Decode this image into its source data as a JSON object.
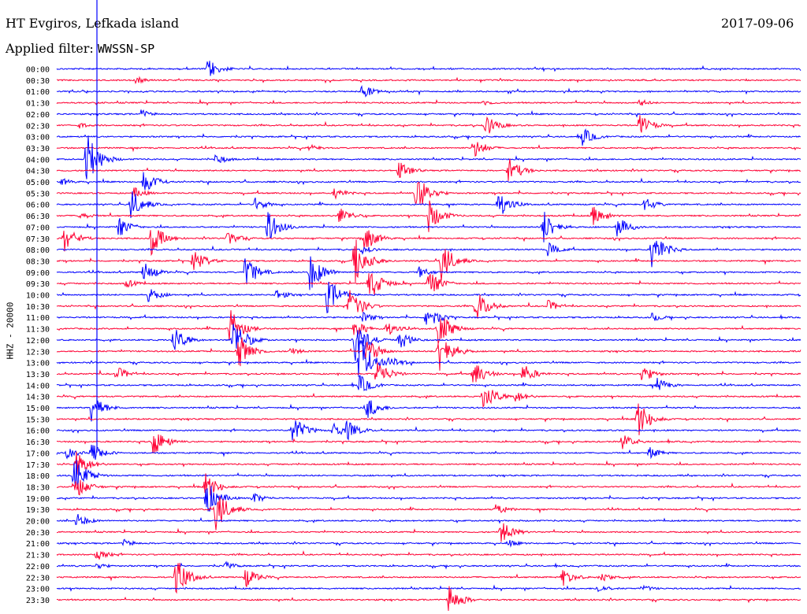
{
  "header": {
    "station": "HT Evgiros, Lefkada island",
    "date": "2017-09-06",
    "filter_label": "Applied filter:",
    "filter_value": "WWSSN-SP"
  },
  "ylabel": "HHZ - 20000",
  "colors": {
    "blue": "#0000ff",
    "red": "#ff0033",
    "marker": "#0000ff"
  },
  "chart_data": {
    "type": "line",
    "title": "HT Evgiros, Lefkada island",
    "row_labels": [
      "00:00",
      "00:30",
      "01:00",
      "01:30",
      "02:00",
      "02:30",
      "03:00",
      "03:30",
      "04:00",
      "04:30",
      "05:00",
      "05:30",
      "06:00",
      "06:30",
      "07:00",
      "07:30",
      "08:00",
      "08:30",
      "09:00",
      "09:30",
      "10:00",
      "10:30",
      "11:00",
      "11:30",
      "12:00",
      "12:30",
      "13:00",
      "13:30",
      "14:00",
      "14:30",
      "15:00",
      "15:30",
      "16:00",
      "16:30",
      "17:00",
      "17:30",
      "18:00",
      "18:30",
      "19:00",
      "19:30",
      "20:00",
      "20:30",
      "21:00",
      "21:30",
      "22:00",
      "22:30",
      "23:00",
      "23:30"
    ],
    "row_colors": [
      "blue",
      "red"
    ],
    "marker_minute": 11,
    "events": [
      {
        "row": 0,
        "min": 6.1,
        "amp": 14
      },
      {
        "row": 1,
        "min": 3.2,
        "amp": 5
      },
      {
        "row": 2,
        "min": 12.3,
        "amp": 10
      },
      {
        "row": 3,
        "min": 17.2,
        "amp": 4
      },
      {
        "row": 3,
        "min": 23.5,
        "amp": 5
      },
      {
        "row": 4,
        "min": 3.4,
        "amp": 6
      },
      {
        "row": 5,
        "min": 0.9,
        "amp": 4
      },
      {
        "row": 5,
        "min": 17.3,
        "amp": 14
      },
      {
        "row": 5,
        "min": 23.5,
        "amp": 15
      },
      {
        "row": 6,
        "min": 21.2,
        "amp": 12
      },
      {
        "row": 7,
        "min": 16.8,
        "amp": 14
      },
      {
        "row": 7,
        "min": 10.2,
        "amp": 5
      },
      {
        "row": 8,
        "min": 1.2,
        "amp": 36
      },
      {
        "row": 8,
        "min": 6.4,
        "amp": 8
      },
      {
        "row": 9,
        "min": 13.8,
        "amp": 12
      },
      {
        "row": 9,
        "min": 18.2,
        "amp": 18
      },
      {
        "row": 10,
        "min": 3.5,
        "amp": 16
      },
      {
        "row": 10,
        "min": 0.2,
        "amp": 5
      },
      {
        "row": 11,
        "min": 3.1,
        "amp": 8
      },
      {
        "row": 11,
        "min": 14.5,
        "amp": 28
      },
      {
        "row": 11,
        "min": 11.2,
        "amp": 8
      },
      {
        "row": 12,
        "min": 3.0,
        "amp": 20
      },
      {
        "row": 12,
        "min": 8.0,
        "amp": 9
      },
      {
        "row": 12,
        "min": 17.8,
        "amp": 18
      },
      {
        "row": 12,
        "min": 23.7,
        "amp": 10
      },
      {
        "row": 13,
        "min": 0.9,
        "amp": 6
      },
      {
        "row": 13,
        "min": 11.4,
        "amp": 12
      },
      {
        "row": 13,
        "min": 15.0,
        "amp": 22
      },
      {
        "row": 13,
        "min": 21.6,
        "amp": 14
      },
      {
        "row": 14,
        "min": 2.5,
        "amp": 14
      },
      {
        "row": 14,
        "min": 8.5,
        "amp": 22
      },
      {
        "row": 14,
        "min": 19.6,
        "amp": 24
      },
      {
        "row": 14,
        "min": 22.6,
        "amp": 14
      },
      {
        "row": 15,
        "min": 0.3,
        "amp": 18
      },
      {
        "row": 15,
        "min": 3.8,
        "amp": 22
      },
      {
        "row": 15,
        "min": 6.9,
        "amp": 10
      },
      {
        "row": 15,
        "min": 12.4,
        "amp": 18
      },
      {
        "row": 16,
        "min": 24.0,
        "amp": 26
      },
      {
        "row": 16,
        "min": 12.3,
        "amp": 6
      },
      {
        "row": 16,
        "min": 19.8,
        "amp": 10
      },
      {
        "row": 17,
        "min": 5.5,
        "amp": 16
      },
      {
        "row": 17,
        "min": 12.0,
        "amp": 34
      },
      {
        "row": 17,
        "min": 15.5,
        "amp": 26
      },
      {
        "row": 18,
        "min": 3.5,
        "amp": 14
      },
      {
        "row": 18,
        "min": 7.6,
        "amp": 22
      },
      {
        "row": 18,
        "min": 10.2,
        "amp": 26
      },
      {
        "row": 18,
        "min": 14.6,
        "amp": 8
      },
      {
        "row": 19,
        "min": 2.8,
        "amp": 6
      },
      {
        "row": 19,
        "min": 12.6,
        "amp": 26
      },
      {
        "row": 19,
        "min": 15.0,
        "amp": 18
      },
      {
        "row": 20,
        "min": 3.7,
        "amp": 10
      },
      {
        "row": 20,
        "min": 8.8,
        "amp": 8
      },
      {
        "row": 20,
        "min": 10.9,
        "amp": 24
      },
      {
        "row": 21,
        "min": 11.8,
        "amp": 24
      },
      {
        "row": 21,
        "min": 16.9,
        "amp": 22
      },
      {
        "row": 21,
        "min": 19.8,
        "amp": 8
      },
      {
        "row": 22,
        "min": 14.9,
        "amp": 18
      },
      {
        "row": 22,
        "min": 12.3,
        "amp": 8
      },
      {
        "row": 22,
        "min": 24.0,
        "amp": 6
      },
      {
        "row": 23,
        "min": 7.0,
        "amp": 26
      },
      {
        "row": 23,
        "min": 12.0,
        "amp": 12
      },
      {
        "row": 23,
        "min": 13.3,
        "amp": 10
      },
      {
        "row": 23,
        "min": 15.4,
        "amp": 24
      },
      {
        "row": 24,
        "min": 4.7,
        "amp": 18
      },
      {
        "row": 24,
        "min": 7.1,
        "amp": 30
      },
      {
        "row": 24,
        "min": 12.0,
        "amp": 30
      },
      {
        "row": 24,
        "min": 13.8,
        "amp": 14
      },
      {
        "row": 25,
        "min": 7.3,
        "amp": 26
      },
      {
        "row": 25,
        "min": 12.5,
        "amp": 18
      },
      {
        "row": 25,
        "min": 15.4,
        "amp": 34
      },
      {
        "row": 25,
        "min": 9.4,
        "amp": 6
      },
      {
        "row": 26,
        "min": 12.2,
        "amp": 36
      },
      {
        "row": 26,
        "min": 13.4,
        "amp": 10
      },
      {
        "row": 27,
        "min": 2.4,
        "amp": 10
      },
      {
        "row": 27,
        "min": 16.8,
        "amp": 18
      },
      {
        "row": 27,
        "min": 18.8,
        "amp": 14
      },
      {
        "row": 27,
        "min": 23.6,
        "amp": 12
      },
      {
        "row": 27,
        "min": 12.9,
        "amp": 20
      },
      {
        "row": 28,
        "min": 12.2,
        "amp": 14
      },
      {
        "row": 28,
        "min": 24.2,
        "amp": 10
      },
      {
        "row": 29,
        "min": 17.2,
        "amp": 20
      },
      {
        "row": 29,
        "min": 18.5,
        "amp": 8
      },
      {
        "row": 30,
        "min": 1.4,
        "amp": 18
      },
      {
        "row": 30,
        "min": 12.5,
        "amp": 16
      },
      {
        "row": 31,
        "min": 23.4,
        "amp": 26
      },
      {
        "row": 32,
        "min": 9.5,
        "amp": 20
      },
      {
        "row": 32,
        "min": 11.1,
        "amp": 12
      },
      {
        "row": 32,
        "min": 11.7,
        "amp": 14
      },
      {
        "row": 33,
        "min": 3.9,
        "amp": 20
      },
      {
        "row": 33,
        "min": 22.8,
        "amp": 10
      },
      {
        "row": 34,
        "min": 0.4,
        "amp": 8
      },
      {
        "row": 34,
        "min": 1.4,
        "amp": 14
      },
      {
        "row": 34,
        "min": 23.9,
        "amp": 8
      },
      {
        "row": 35,
        "min": 0.8,
        "amp": 18
      },
      {
        "row": 36,
        "min": 0.7,
        "amp": 26
      },
      {
        "row": 37,
        "min": 0.7,
        "amp": 20
      },
      {
        "row": 37,
        "min": 6.0,
        "amp": 18
      },
      {
        "row": 38,
        "min": 6.0,
        "amp": 26
      },
      {
        "row": 38,
        "min": 7.9,
        "amp": 8
      },
      {
        "row": 39,
        "min": 6.4,
        "amp": 28
      },
      {
        "row": 39,
        "min": 17.7,
        "amp": 8
      },
      {
        "row": 40,
        "min": 0.8,
        "amp": 10
      },
      {
        "row": 41,
        "min": 17.9,
        "amp": 16
      },
      {
        "row": 42,
        "min": 2.7,
        "amp": 6
      },
      {
        "row": 42,
        "min": 18.2,
        "amp": 5
      },
      {
        "row": 43,
        "min": 1.6,
        "amp": 8
      },
      {
        "row": 44,
        "min": 1.6,
        "amp": 5
      },
      {
        "row": 44,
        "min": 6.8,
        "amp": 6
      },
      {
        "row": 45,
        "min": 4.8,
        "amp": 26
      },
      {
        "row": 45,
        "min": 7.6,
        "amp": 14
      },
      {
        "row": 45,
        "min": 20.4,
        "amp": 12
      },
      {
        "row": 45,
        "min": 21.9,
        "amp": 8
      },
      {
        "row": 46,
        "min": 21.8,
        "amp": 6
      },
      {
        "row": 46,
        "min": 23.6,
        "amp": 5
      },
      {
        "row": 47,
        "min": 15.8,
        "amp": 20
      }
    ]
  }
}
